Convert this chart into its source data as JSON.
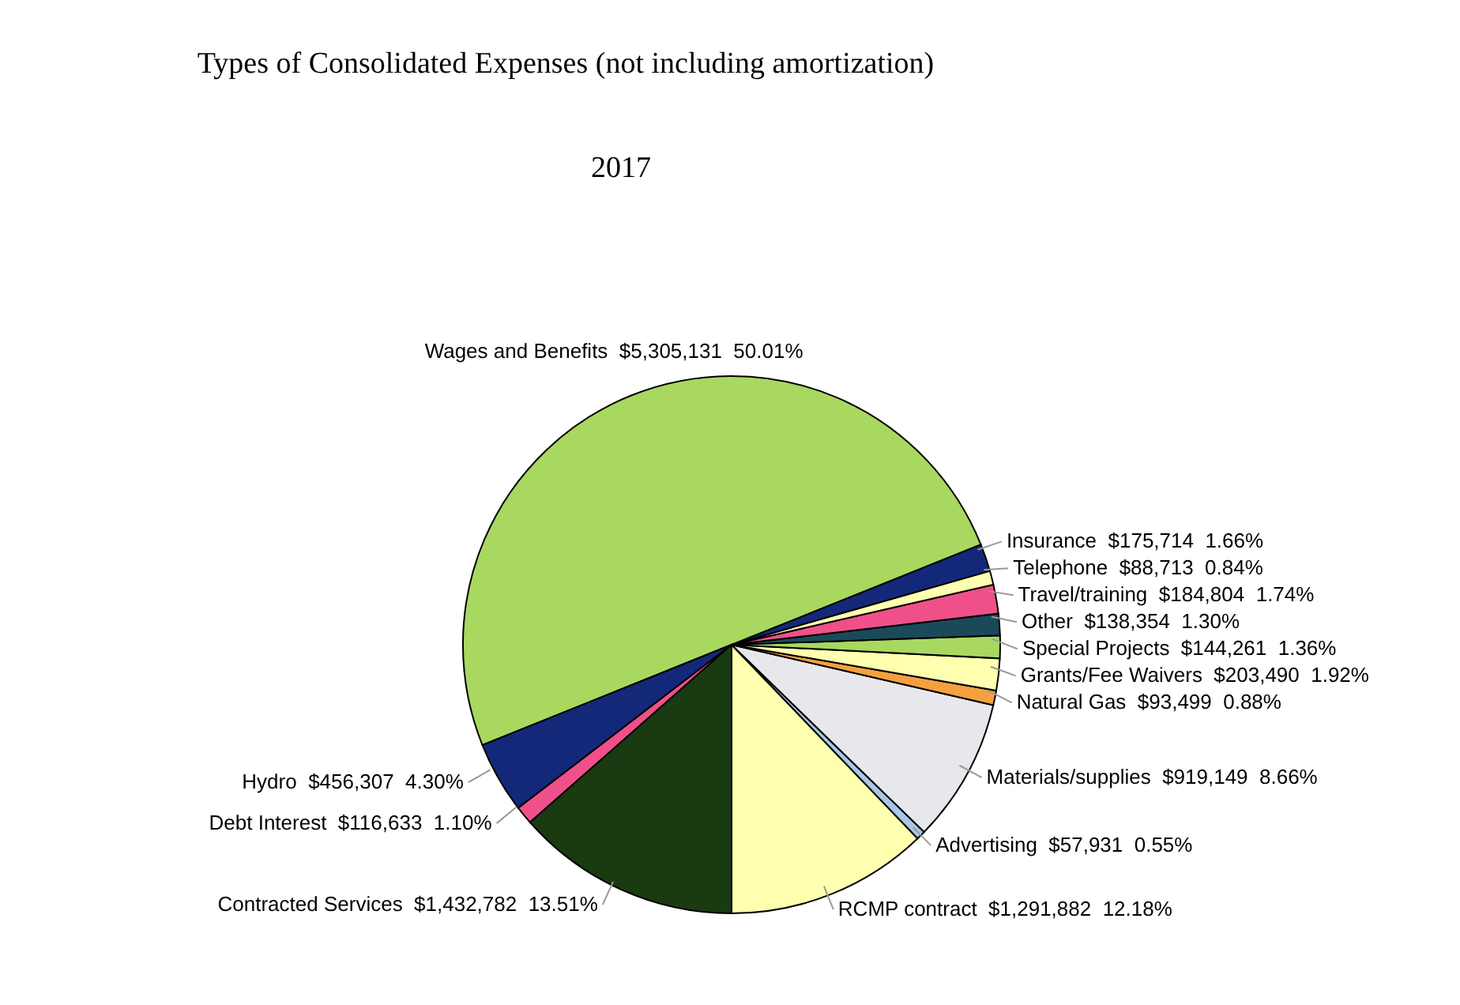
{
  "chart_data": {
    "type": "pie",
    "title": "Types of Consolidated Expenses (not including amortization)",
    "subtitle": "2017",
    "categories": [
      "RCMP contract",
      "Advertising",
      "Materials/supplies",
      "Natural Gas",
      "Grants/Fee Waivers",
      "Special Projects",
      "Other",
      "Travel/training",
      "Telephone",
      "Insurance",
      "Wages and Benefits",
      "Hydro",
      "Debt Interest",
      "Contracted Services"
    ],
    "values": [
      1291882,
      57931,
      919149,
      93499,
      203490,
      144261,
      138354,
      184804,
      88713,
      175714,
      5305131,
      456307,
      116633,
      1432782
    ],
    "value_labels": [
      "$1,291,882  12.18%",
      "$57,931  0.55%",
      "$919,149  8.66%",
      "$93,499  0.88%",
      "$203,490  1.92%",
      "$144,261  1.36%",
      "$138,354  1.30%",
      "$184,804  1.74%",
      "$88,713  0.84%",
      "$175,714  1.66%",
      "$5,305,131  50.01%",
      "$456,307  4.30%",
      "$116,633  1.10%",
      "$1,432,782  13.51%"
    ],
    "colors": [
      "#ffffb0",
      "#a8c8e8",
      "#e8e8ec",
      "#f4a040",
      "#ffffb0",
      "#a8d860",
      "#1a4a5a",
      "#f0508a",
      "#ffffb0",
      "#14287a",
      "#a8d860",
      "#14287a",
      "#f0508a",
      "#1a3a12"
    ],
    "legend": false
  }
}
